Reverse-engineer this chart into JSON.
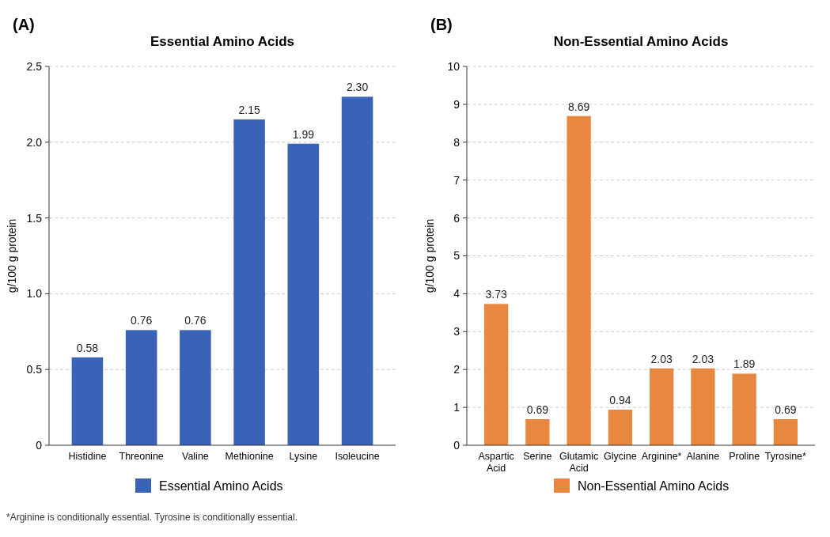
{
  "chart_data": [
    {
      "type": "bar",
      "title": "Essential Amino Acids",
      "ylabel": "g/100 g protein",
      "annotations": [
        "(A)",
        "*Arginine is conditionally essential. Tyrosine is conditionally essential."
      ],
      "categories": [
        "Histidine",
        "Threonine",
        "Valine",
        "Methionine",
        "Lysine",
        "Isoleucine"
      ],
      "series": [
        {
          "name": "Essential Amino Acids",
          "color": "#3a62b6",
          "values": [
            0.58,
            0.76,
            0.76,
            2.15,
            1.99,
            2.3
          ],
          "value_labels": [
            "0.58",
            "0.76",
            "0.76",
            "2.15",
            "1.99",
            "2.30"
          ]
        }
      ],
      "ylim": [
        0,
        2.5
      ],
      "yticks": [
        0,
        0.5,
        {
          "value": 1,
          "label": "1.0"
        },
        1.5,
        {
          "value": 2,
          "label": "2.0"
        },
        2.5
      ],
      "grid": "y",
      "legend": "bottom"
    },
    {
      "type": "bar",
      "title": "Non-Essential Amino Acids",
      "ylabel": "g/100 g protein",
      "annotations": [
        "(B)"
      ],
      "categories": [
        "Aspartic Acid",
        "Serine",
        "Glutamic Acid",
        "Glycine",
        "Arginine*",
        "Alanine",
        "Proline",
        "Tyrosine*"
      ],
      "series": [
        {
          "name": "Non-Essential Amino Acids",
          "color": "#e8873f",
          "values": [
            3.73,
            0.69,
            8.69,
            0.94,
            2.03,
            2.03,
            1.89,
            0.69
          ],
          "value_labels": [
            "3.73",
            "0.69",
            "8.69",
            "0.94",
            "2.03",
            "2.03",
            "1.89",
            "0.69"
          ]
        }
      ],
      "ylim": [
        0,
        10
      ],
      "yticks": [
        0,
        1,
        2,
        3,
        4,
        5,
        6,
        7,
        8,
        9,
        10
      ],
      "grid": "y",
      "legend": "bottom"
    }
  ]
}
